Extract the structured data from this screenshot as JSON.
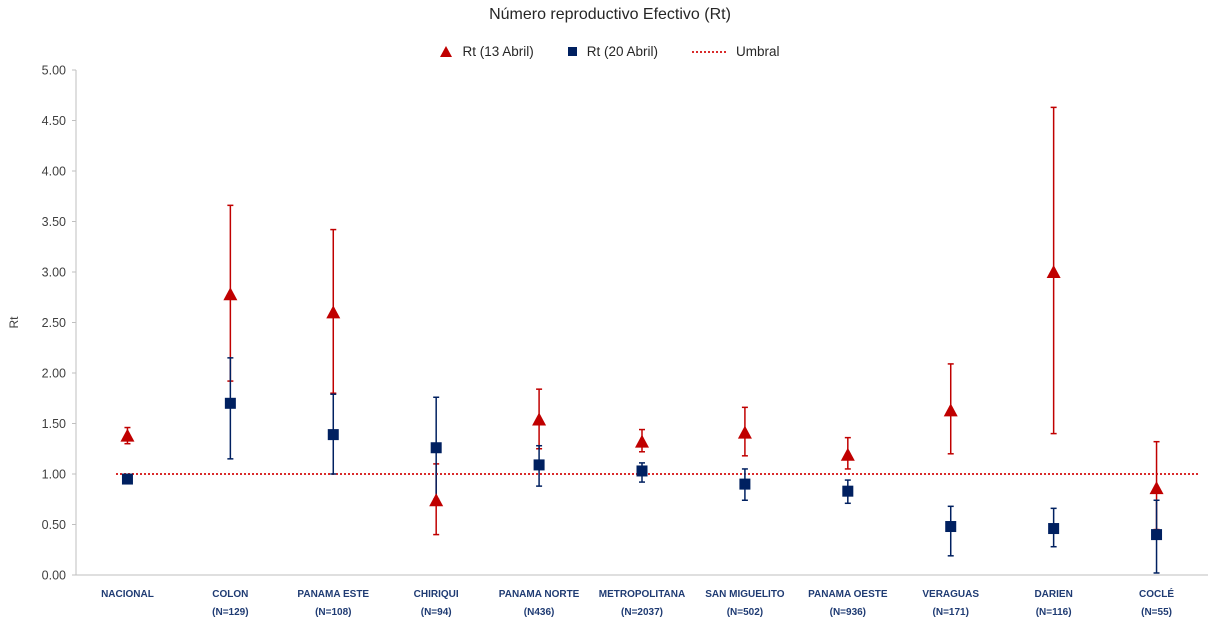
{
  "chart_data": {
    "type": "scatter",
    "title": "Número reproductivo Efectivo (Rt)",
    "xlabel": "",
    "ylabel": "Rt",
    "ylim": [
      0,
      5
    ],
    "y_ticks": [
      "0.00",
      "0.50",
      "1.00",
      "1.50",
      "2.00",
      "2.50",
      "3.00",
      "3.50",
      "4.00",
      "4.50",
      "5.00"
    ],
    "grid": false,
    "legend_position": "top-center",
    "categories": [
      [
        "NACIONAL",
        ""
      ],
      [
        "COLON",
        "(N=129)"
      ],
      [
        "PANAMA ESTE",
        "(N=108)"
      ],
      [
        "CHIRIQUI",
        "(N=94)"
      ],
      [
        "PANAMA NORTE",
        "(N436)"
      ],
      [
        "METROPOLITANA",
        "(N=2037)"
      ],
      [
        "SAN MIGUELITO",
        "(N=502)"
      ],
      [
        "PANAMA OESTE",
        "(N=936)"
      ],
      [
        "VERAGUAS",
        "(N=171)"
      ],
      [
        "DARIEN",
        "(N=116)"
      ],
      [
        "COCLÉ",
        "(N=55)"
      ]
    ],
    "series": [
      {
        "name": "Rt (13 Abril)",
        "marker": "triangle",
        "color": "#c00000",
        "values": [
          1.38,
          2.78,
          2.6,
          0.74,
          1.54,
          1.32,
          1.41,
          1.19,
          1.63,
          3.0,
          0.86
        ],
        "lower": [
          1.3,
          1.92,
          1.8,
          0.4,
          1.25,
          1.22,
          1.18,
          1.05,
          1.2,
          1.4,
          0.45
        ],
        "upper": [
          1.46,
          3.66,
          3.42,
          1.1,
          1.84,
          1.44,
          1.66,
          1.36,
          2.09,
          4.63,
          1.32
        ]
      },
      {
        "name": "Rt (20 Abril)",
        "marker": "square",
        "color": "#002060",
        "values": [
          0.95,
          1.7,
          1.39,
          1.26,
          1.09,
          1.03,
          0.9,
          0.83,
          0.48,
          0.46,
          0.4
        ],
        "lower": [
          0.92,
          1.15,
          1.0,
          0.75,
          0.88,
          0.92,
          0.74,
          0.71,
          0.19,
          0.28,
          0.02
        ],
        "upper": [
          0.99,
          2.15,
          1.79,
          1.76,
          1.28,
          1.11,
          1.05,
          0.94,
          0.68,
          0.66,
          0.74
        ]
      }
    ],
    "threshold": {
      "name": "Umbral",
      "value": 1.0,
      "color": "#d92b2b"
    }
  }
}
